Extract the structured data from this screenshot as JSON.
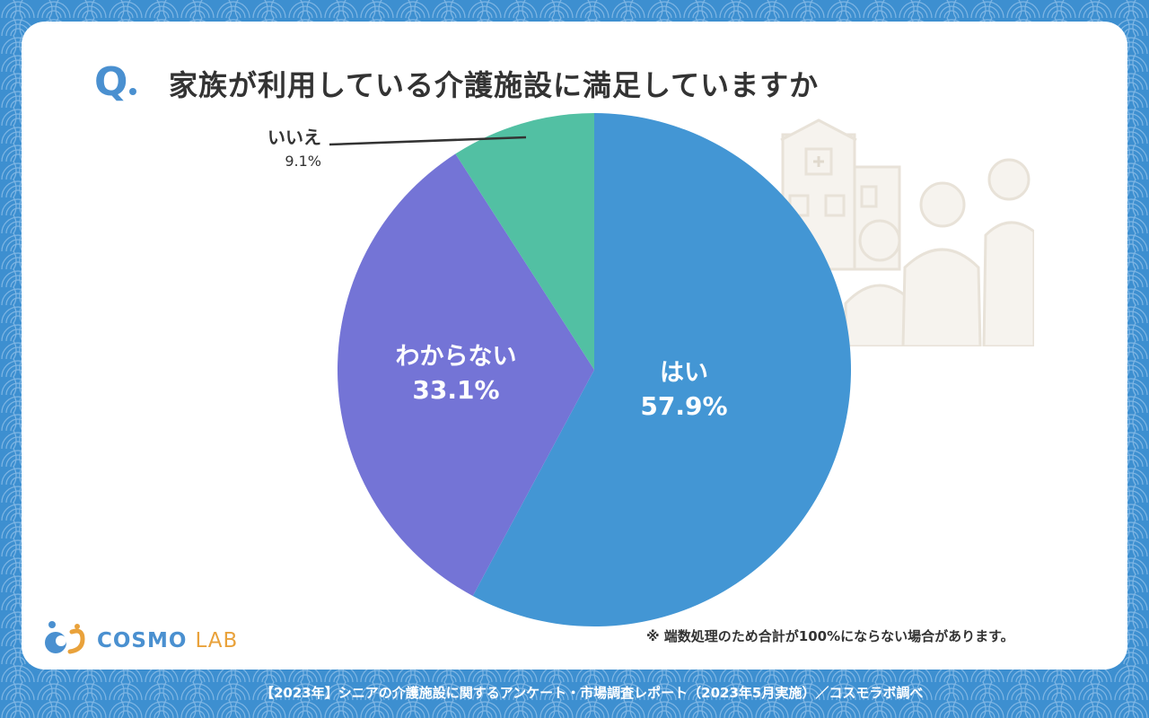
{
  "title": {
    "q_mark": "Q",
    "text": "家族が利用している介護施設に満足していますか"
  },
  "chart_data": {
    "type": "pie",
    "title": "家族が利用している介護施設に満足していますか",
    "slices": [
      {
        "label": "はい",
        "value": 57.9,
        "value_text": "57.9%",
        "color": "#4396d4",
        "label_position": "inside"
      },
      {
        "label": "わからない",
        "value": 33.1,
        "value_text": "33.1%",
        "color": "#7474d6",
        "label_position": "inside"
      },
      {
        "label": "いいえ",
        "value": 9.1,
        "value_text": "9.1%",
        "color": "#52c0a3",
        "label_position": "outside"
      }
    ],
    "start_angle": "12 o'clock",
    "direction": "clockwise"
  },
  "note": "※ 端数処理のため合計が100%にならない場合があります。",
  "logo": {
    "main": "COSMO",
    "sub": "LAB"
  },
  "footer": "【2023年】シニアの介護施設に関するアンケート・市場調査レポート（2023年5月実施）／コスモラボ調べ",
  "colors": {
    "background": "#3d8fd0",
    "accent": "#4a90d0",
    "logo_sub": "#e9a23b"
  }
}
